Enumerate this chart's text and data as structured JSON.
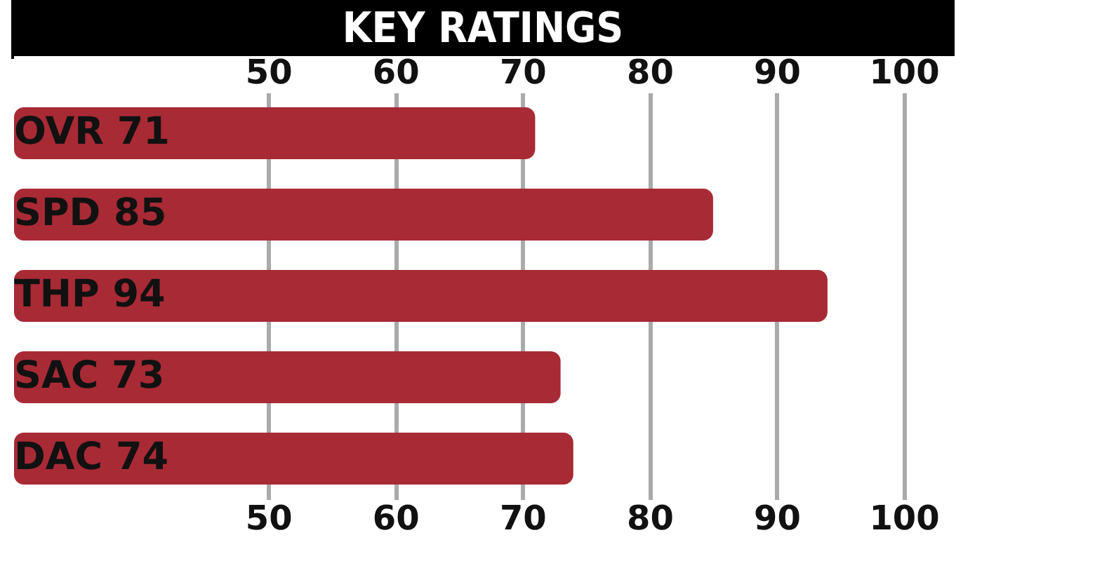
{
  "chart_data": {
    "type": "bar",
    "orientation": "horizontal",
    "title": "KEY RATINGS",
    "categories": [
      "OVR 71",
      "SPD 85",
      "THP 94",
      "SAC 73",
      "DAC 74"
    ],
    "values": [
      71,
      85,
      94,
      73,
      74
    ],
    "color": "#a82a35",
    "xlim": [
      30,
      104
    ],
    "xticks": [
      50,
      60,
      70,
      80,
      90,
      100
    ],
    "x2lim": [
      30,
      104
    ],
    "x2ticks": [
      50,
      60,
      70,
      80,
      90,
      100
    ],
    "grid": "x"
  }
}
